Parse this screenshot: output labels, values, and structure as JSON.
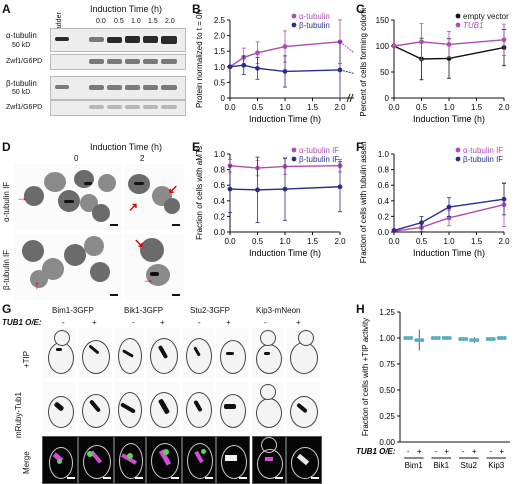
{
  "panel_labels": {
    "a": "A",
    "b": "B",
    "c": "C",
    "d": "D",
    "e": "E",
    "f": "F",
    "g": "G",
    "h": "H"
  },
  "panelA": {
    "ladder": "Ladder",
    "induction_title": "Induction Time (h)",
    "times": [
      "0.0",
      "0.5",
      "1.0",
      "1.5",
      "2.0"
    ],
    "row1": "α-tubulin",
    "row1_kda": "50 kD",
    "row2": "Zwf1/G6PD",
    "row3": "β-tubulin",
    "row3_kda": "50 kD",
    "row4": "Zwf1/G6PD"
  },
  "panelD": {
    "title": "Induction Time (h)",
    "t0": "0",
    "t2": "2",
    "row1": "α-tubulin IF",
    "row2": "β-tubulin IF"
  },
  "panelG": {
    "strains": [
      "Bim1-3GFP",
      "Bik1-3GFP",
      "Stu2-3GFP",
      "Kip3-mNeon"
    ],
    "oe_label": "TUB1 O/E:",
    "minus": "-",
    "plus": "+",
    "rows": [
      "+TIP",
      "mRuby-Tub1",
      "Merge"
    ]
  },
  "chart_data": [
    {
      "id": "B",
      "type": "line",
      "xlabel": "Induction Time (h)",
      "ylabel": "Protein normalized to t = 0h",
      "xticks": [
        "0.0",
        "0.5",
        "1.0",
        "1.5",
        "2.0",
        "24"
      ],
      "ylim": [
        0,
        2.5
      ],
      "yticks": [
        "0",
        "0.5",
        "1.0",
        "1.5",
        "2.0",
        "2.5"
      ],
      "series": [
        {
          "name": "α-tubulin",
          "color": "#b24cb2",
          "x": [
            0,
            0.25,
            0.5,
            1.0,
            2.0
          ],
          "y": [
            1.0,
            1.3,
            1.45,
            1.65,
            1.8
          ],
          "err": [
            0,
            0.3,
            0.35,
            0.5,
            0.7
          ],
          "x24": 24,
          "y24": 1.25
        },
        {
          "name": "β-tubulin",
          "color": "#2b2e8c",
          "x": [
            0,
            0.25,
            0.5,
            1.0,
            2.0
          ],
          "y": [
            1.0,
            1.05,
            0.95,
            0.85,
            0.9
          ],
          "err": [
            0,
            0.3,
            0.35,
            0.5,
            0.9
          ],
          "x24": 24,
          "y24": 0.72
        }
      ]
    },
    {
      "id": "C",
      "type": "line",
      "xlabel": "Induction Time (h)",
      "ylabel": "Percent of cells forming colonies",
      "xticks": [
        "0.0",
        "0.5",
        "1.0",
        "1.5",
        "2.0"
      ],
      "ylim": [
        0,
        150
      ],
      "yticks": [
        "0",
        "50",
        "100",
        "150"
      ],
      "series": [
        {
          "name": "empty vector",
          "color": "#111111",
          "x": [
            0,
            0.5,
            1.0,
            2.0
          ],
          "y": [
            100,
            75,
            76,
            97
          ],
          "err": [
            0,
            40,
            38,
            35
          ]
        },
        {
          "name": "TUB1",
          "color": "#b24cb2",
          "x": [
            0,
            0.5,
            1.0,
            2.0
          ],
          "y": [
            100,
            108,
            103,
            112
          ],
          "err": [
            0,
            35,
            25,
            30
          ]
        }
      ]
    },
    {
      "id": "E",
      "type": "line",
      "xlabel": "Induction Time (h)",
      "ylabel": "Fraction of cells with aMTs",
      "xticks": [
        "0.0",
        "0.5",
        "1.0",
        "1.5",
        "2.0"
      ],
      "ylim": [
        0,
        1.0
      ],
      "yticks": [
        "0.0",
        "0.2",
        "0.4",
        "0.6",
        "0.8",
        "1.0"
      ],
      "series": [
        {
          "name": "α-tubulin IF",
          "color": "#b24cb2",
          "x": [
            0,
            0.5,
            1.0,
            2.0
          ],
          "y": [
            0.85,
            0.82,
            0.84,
            0.85
          ],
          "err": [
            0.08,
            0.1,
            0.1,
            0.08
          ]
        },
        {
          "name": "β-tubulin IF",
          "color": "#2b2e8c",
          "x": [
            0,
            0.5,
            1.0,
            2.0
          ],
          "y": [
            0.55,
            0.54,
            0.55,
            0.58
          ],
          "err": [
            0.3,
            0.42,
            0.4,
            0.32
          ]
        }
      ]
    },
    {
      "id": "F",
      "type": "line",
      "xlabel": "Induction Time (h)",
      "ylabel": "Fraction of cells with tubulin assemblies",
      "xticks": [
        "0.0",
        "0.5",
        "1.0",
        "1.5",
        "2.0"
      ],
      "ylim": [
        0,
        1.0
      ],
      "yticks": [
        "0.0",
        "0.2",
        "0.4",
        "0.6",
        "0.8",
        "1.0"
      ],
      "series": [
        {
          "name": "α-tubulin IF",
          "color": "#b24cb2",
          "x": [
            0,
            0.5,
            1.0,
            2.0
          ],
          "y": [
            0.01,
            0.06,
            0.18,
            0.35
          ],
          "err": [
            0.01,
            0.05,
            0.1,
            0.28
          ]
        },
        {
          "name": "β-tubulin IF",
          "color": "#2b2e8c",
          "x": [
            0,
            0.5,
            1.0,
            2.0
          ],
          "y": [
            0.02,
            0.12,
            0.32,
            0.42
          ],
          "err": [
            0.01,
            0.08,
            0.12,
            0.2
          ]
        }
      ]
    },
    {
      "id": "H",
      "type": "scatter",
      "ylabel": "Fraction of cells with +TIP activity",
      "ylim": [
        0,
        1.25
      ],
      "yticks": [
        "0.00",
        "0.25",
        "0.50",
        "0.75",
        "1.00",
        "1.25"
      ],
      "oe_label": "TUB1 O/E:",
      "groups": [
        "Bim1",
        "Bik1",
        "Stu2",
        "Kip3"
      ],
      "conditions": [
        "-",
        "+"
      ],
      "values": [
        [
          1.0,
          0.98
        ],
        [
          1.0,
          1.0
        ],
        [
          0.99,
          0.98
        ],
        [
          0.99,
          1.0
        ]
      ],
      "err": [
        [
          0.02,
          0.1
        ],
        [
          0.01,
          0.01
        ],
        [
          0.02,
          0.03
        ],
        [
          0.02,
          0.02
        ]
      ],
      "color": "#5aaec2"
    }
  ]
}
